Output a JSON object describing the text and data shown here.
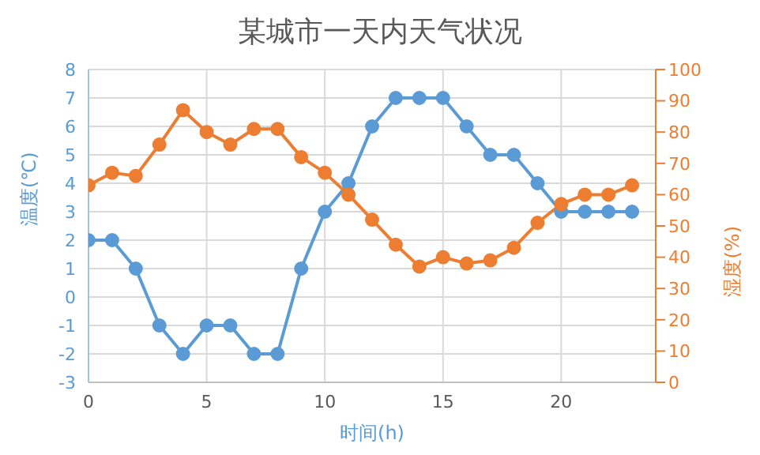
{
  "chart_data": {
    "type": "line",
    "title": "某城市一天内天气状况",
    "xlabel": "时间(h)",
    "ylabel": "温度(℃)",
    "y2label": "湿度(%)",
    "x": [
      0,
      1,
      2,
      3,
      4,
      5,
      6,
      7,
      8,
      9,
      10,
      11,
      12,
      13,
      14,
      15,
      16,
      17,
      18,
      19,
      20,
      21,
      22,
      23
    ],
    "series": [
      {
        "color": "#5b9bd5",
        "values": [
          2,
          2,
          1,
          -1,
          -2,
          -1,
          -1,
          -2,
          -2,
          1,
          3,
          4,
          6,
          7,
          7,
          7,
          6,
          5,
          5,
          4,
          3,
          3,
          3,
          3
        ]
      },
      {
        "color": "#ed7d31",
        "axis": "y2",
        "values": [
          63,
          67,
          66,
          76,
          87,
          80,
          76,
          81,
          81,
          72,
          67,
          60,
          52,
          44,
          37,
          40,
          38,
          39,
          43,
          51,
          57,
          60,
          60,
          63
        ]
      }
    ],
    "xlim": [
      0,
      24
    ],
    "xticks": [
      0,
      5,
      10,
      15,
      20
    ],
    "ylim": [
      -3,
      8
    ],
    "yticks": [
      -3,
      -2,
      -1,
      0,
      1,
      2,
      3,
      4,
      5,
      6,
      7,
      8
    ],
    "y2lim": [
      0,
      100
    ],
    "y2ticks": [
      0,
      10,
      20,
      30,
      40,
      50,
      60,
      70,
      80,
      90,
      100
    ],
    "grid": true,
    "marker": "circle",
    "line_style": "solid"
  }
}
